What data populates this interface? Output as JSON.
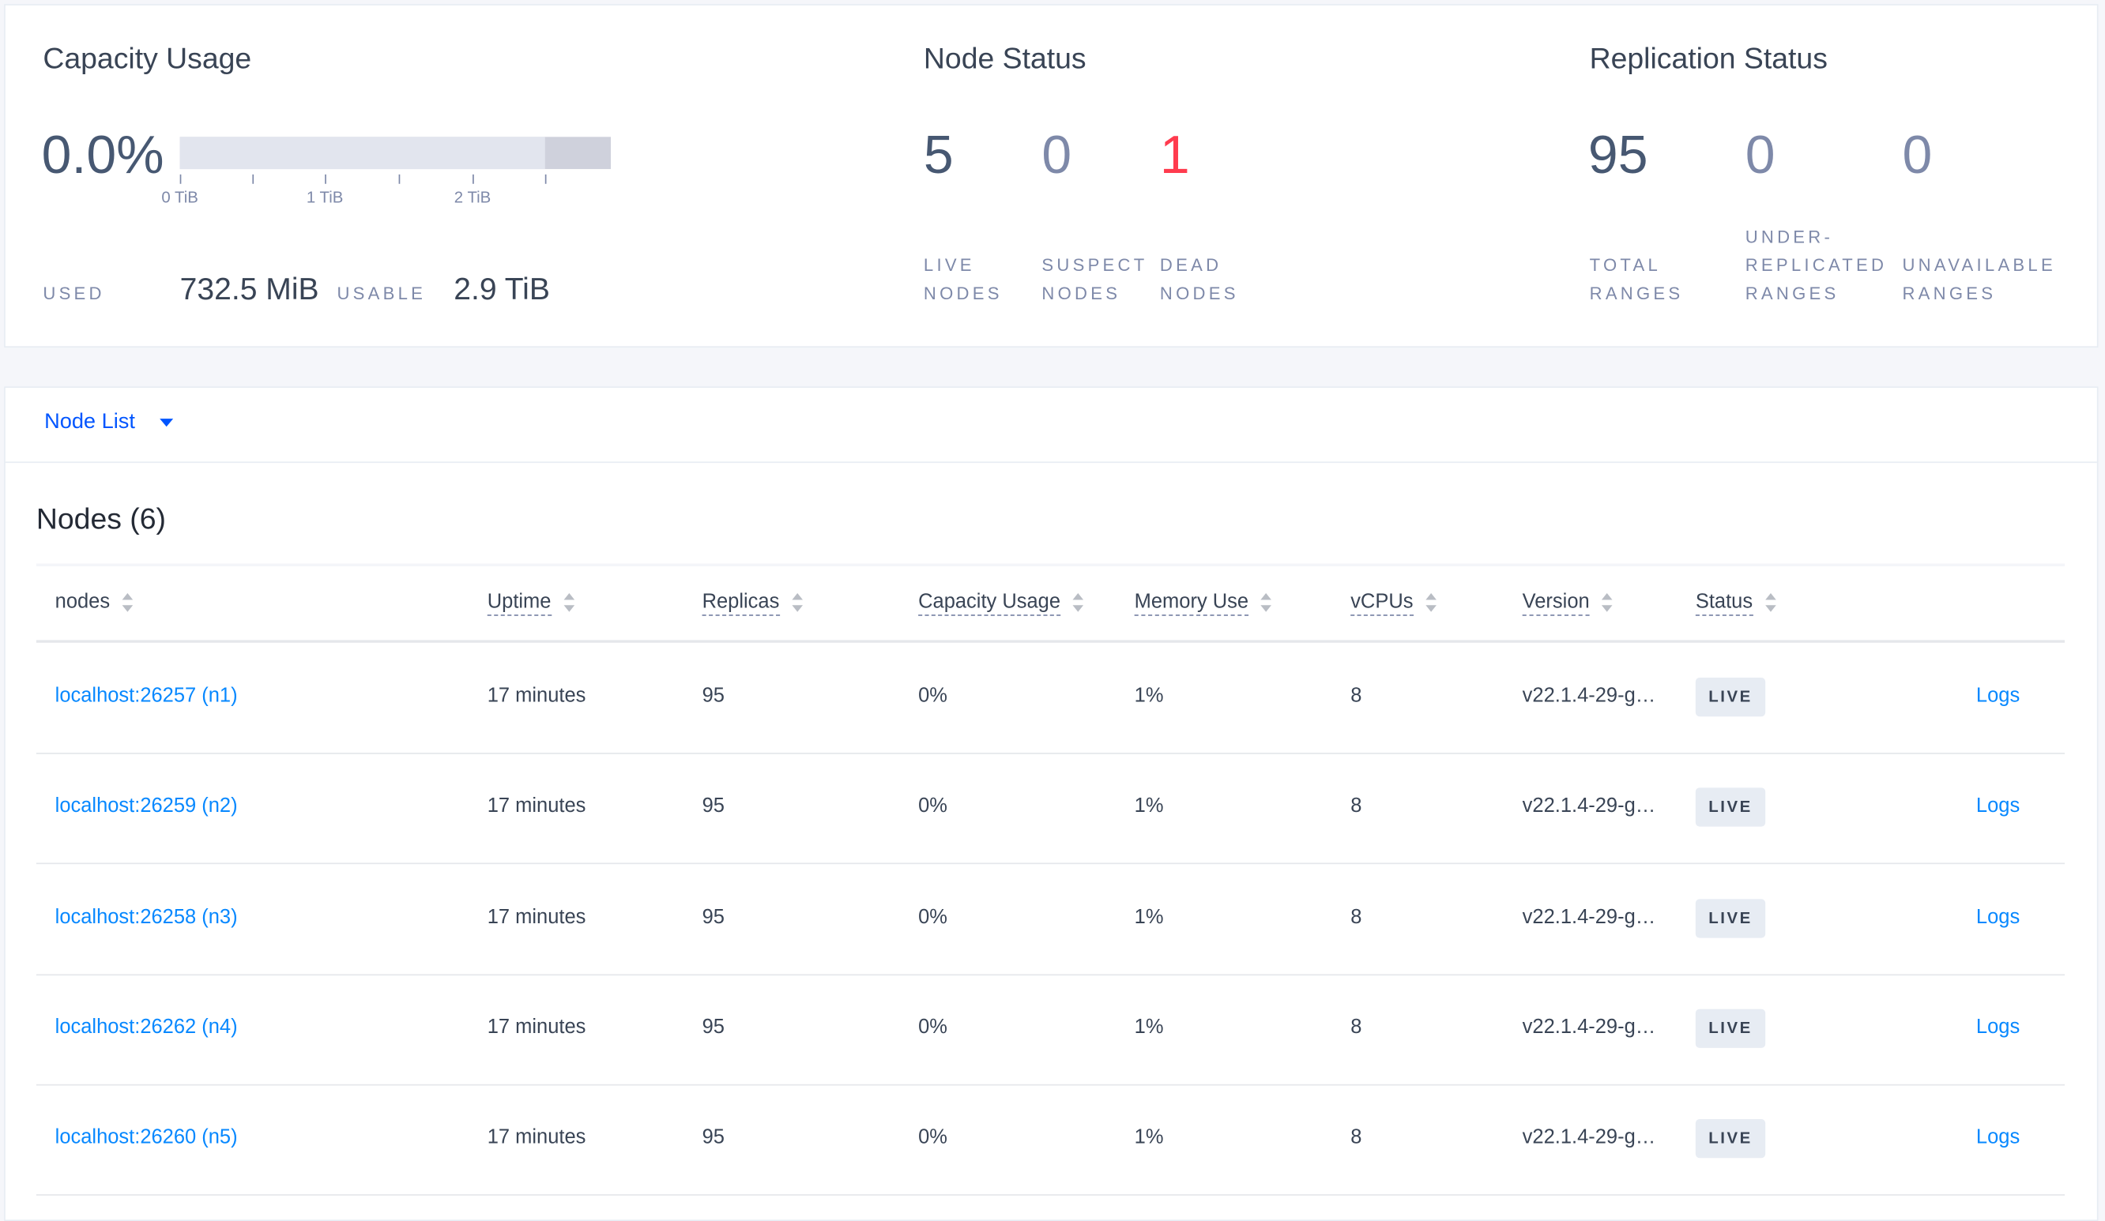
{
  "capacity": {
    "title": "Capacity Usage",
    "percent": "0.0%",
    "used_fraction": 0.0,
    "tick_labels": [
      "0 TiB",
      "1 TiB",
      "2 TiB"
    ],
    "used_label": "USED",
    "used_value": "732.5 MiB",
    "usable_label": "USABLE",
    "usable_value": "2.9 TiB"
  },
  "node_status": {
    "title": "Node Status",
    "live": "5",
    "live_label": "LIVE\nNODES",
    "suspect": "0",
    "suspect_label": "SUSPECT\nNODES",
    "dead": "1",
    "dead_label": "DEAD\nNODES"
  },
  "replication": {
    "title": "Replication Status",
    "total": "95",
    "total_label": "TOTAL\nRANGES",
    "under": "0",
    "under_label": "UNDER-\nREPLICATED\nRANGES",
    "unavailable": "0",
    "unavailable_label": "UNAVAILABLE\nRANGES"
  },
  "colors": {
    "accent": "#0055ff",
    "link": "#0788ff",
    "dead": "#ff3b4e",
    "text": "#394455"
  },
  "view_selector": "Node List",
  "nodes_title": "Nodes (6)",
  "columns": [
    "nodes",
    "Uptime",
    "Replicas",
    "Capacity Usage",
    "Memory Use",
    "vCPUs",
    "Version",
    "Status"
  ],
  "rows": [
    {
      "node": "localhost:26257 (n1)",
      "uptime": "17 minutes",
      "replicas": "95",
      "capacity": "0%",
      "memory": "1%",
      "vcpus": "8",
      "version": "v22.1.4-29-g…",
      "status": "LIVE",
      "logs": "Logs"
    },
    {
      "node": "localhost:26259 (n2)",
      "uptime": "17 minutes",
      "replicas": "95",
      "capacity": "0%",
      "memory": "1%",
      "vcpus": "8",
      "version": "v22.1.4-29-g…",
      "status": "LIVE",
      "logs": "Logs"
    },
    {
      "node": "localhost:26258 (n3)",
      "uptime": "17 minutes",
      "replicas": "95",
      "capacity": "0%",
      "memory": "1%",
      "vcpus": "8",
      "version": "v22.1.4-29-g…",
      "status": "LIVE",
      "logs": "Logs"
    },
    {
      "node": "localhost:26262 (n4)",
      "uptime": "17 minutes",
      "replicas": "95",
      "capacity": "0%",
      "memory": "1%",
      "vcpus": "8",
      "version": "v22.1.4-29-g…",
      "status": "LIVE",
      "logs": "Logs"
    },
    {
      "node": "localhost:26260 (n5)",
      "uptime": "17 minutes",
      "replicas": "95",
      "capacity": "0%",
      "memory": "1%",
      "vcpus": "8",
      "version": "v22.1.4-29-g…",
      "status": "LIVE",
      "logs": "Logs"
    }
  ]
}
